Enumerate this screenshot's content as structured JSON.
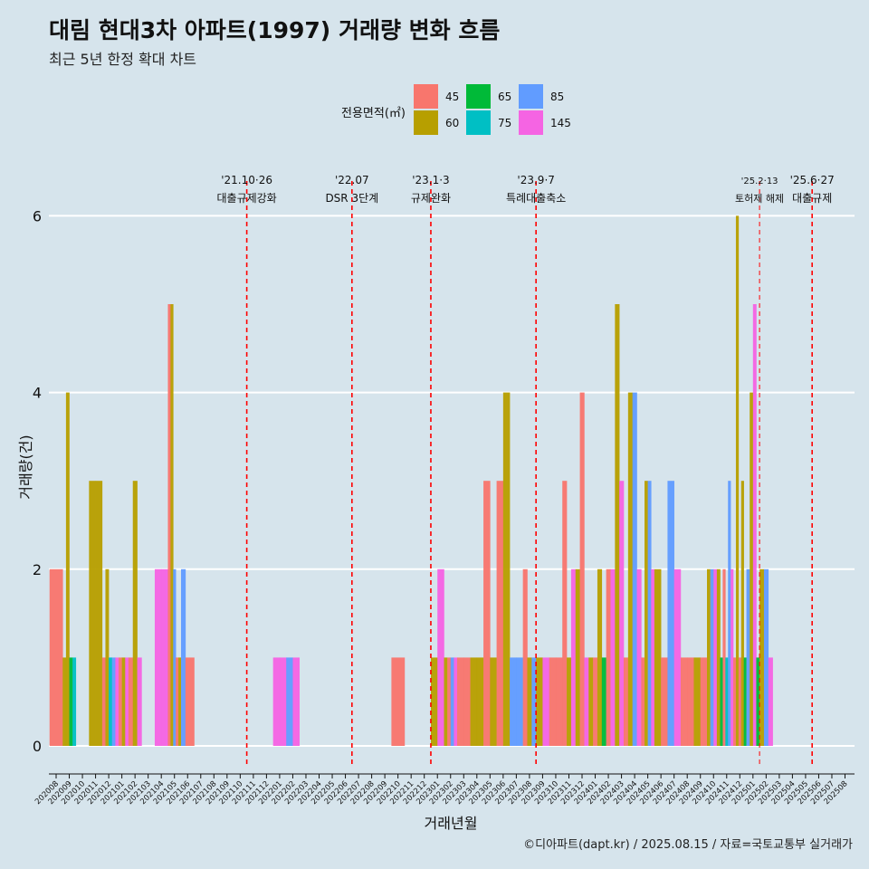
{
  "title": "대림 현대3차 아파트(1997) 거래량 변화 흐름",
  "subtitle": "최근 5년 한정 확대 차트",
  "caption": "©디아파트(dapt.kr) / 2025.08.15 / 자료=국토교통부 실거래가",
  "chart_data": {
    "type": "bar",
    "xlabel": "거래년월",
    "ylabel": "거래량(건)",
    "ylim": [
      0,
      6
    ],
    "y_ticks": [
      0,
      2,
      4,
      6
    ],
    "grid": true,
    "legend_title": "전용면적(㎡)",
    "legend_position": "top",
    "series_colors": {
      "45": "#f8766d",
      "60": "#b79f00",
      "65": "#00ba38",
      "75": "#00bfc4",
      "85": "#619cff",
      "145": "#f564e3"
    },
    "legend_items": [
      "45",
      "60",
      "65",
      "75",
      "85",
      "145"
    ],
    "categories": [
      "202008",
      "202009",
      "202010",
      "202011",
      "202012",
      "202101",
      "202102",
      "202103",
      "202104",
      "202105",
      "202106",
      "202107",
      "202108",
      "202109",
      "202110",
      "202111",
      "202112",
      "202201",
      "202202",
      "202203",
      "202204",
      "202205",
      "202206",
      "202207",
      "202208",
      "202209",
      "202210",
      "202211",
      "202212",
      "202301",
      "202302",
      "202303",
      "202304",
      "202305",
      "202306",
      "202307",
      "202308",
      "202309",
      "202310",
      "202311",
      "202312",
      "202401",
      "202402",
      "202403",
      "202404",
      "202405",
      "202406",
      "202407",
      "202408",
      "202409",
      "202410",
      "202411",
      "202412",
      "202501",
      "202502",
      "202503",
      "202504",
      "202505",
      "202506",
      "202507",
      "202508"
    ],
    "data": [
      [
        {
          "s": "45",
          "v": 2
        }
      ],
      [
        {
          "s": "60",
          "v": 1
        },
        {
          "s": "60",
          "v": 4
        },
        {
          "s": "65",
          "v": 1
        },
        {
          "s": "75",
          "v": 1
        }
      ],
      [],
      [
        {
          "s": "60",
          "v": 3
        },
        {
          "s": "60",
          "v": 3
        }
      ],
      [
        {
          "s": "45",
          "v": 1
        },
        {
          "s": "60",
          "v": 2
        },
        {
          "s": "75",
          "v": 1
        },
        {
          "s": "85",
          "v": 1
        }
      ],
      [
        {
          "s": "145",
          "v": 1
        },
        {
          "s": "45",
          "v": 1
        },
        {
          "s": "60",
          "v": 1
        },
        {
          "s": "145",
          "v": 1
        }
      ],
      [
        {
          "s": "45",
          "v": 1
        },
        {
          "s": "60",
          "v": 3
        },
        {
          "s": "145",
          "v": 1
        }
      ],
      [],
      [
        {
          "s": "145",
          "v": 2
        },
        {
          "s": "145",
          "v": 2
        }
      ],
      [
        {
          "s": "45",
          "v": 5
        },
        {
          "s": "60",
          "v": 5
        },
        {
          "s": "85",
          "v": 2
        },
        {
          "s": "45",
          "v": 1
        },
        {
          "s": "60",
          "v": 1
        }
      ],
      [
        {
          "s": "85",
          "v": 2
        },
        {
          "s": "45",
          "v": 1
        },
        {
          "s": "45",
          "v": 1
        }
      ],
      [],
      [],
      [],
      [],
      [],
      [],
      [
        {
          "s": "145",
          "v": 1
        },
        {
          "s": "145",
          "v": 1
        }
      ],
      [
        {
          "s": "85",
          "v": 1
        },
        {
          "s": "145",
          "v": 1
        }
      ],
      [],
      [],
      [],
      [],
      [],
      [],
      [],
      [
        {
          "s": "45",
          "v": 1
        }
      ],
      [],
      [],
      [
        {
          "s": "60",
          "v": 1
        },
        {
          "s": "145",
          "v": 2
        }
      ],
      [
        {
          "s": "60",
          "v": 1
        },
        {
          "s": "45",
          "v": 1
        },
        {
          "s": "85",
          "v": 1
        },
        {
          "s": "145",
          "v": 1
        }
      ],
      [
        {
          "s": "45",
          "v": 1
        },
        {
          "s": "45",
          "v": 1
        }
      ],
      [
        {
          "s": "60",
          "v": 1
        },
        {
          "s": "60",
          "v": 1
        }
      ],
      [
        {
          "s": "45",
          "v": 3
        },
        {
          "s": "60",
          "v": 1
        }
      ],
      [
        {
          "s": "45",
          "v": 3
        },
        {
          "s": "60",
          "v": 4
        }
      ],
      [
        {
          "s": "85",
          "v": 1
        },
        {
          "s": "85",
          "v": 1
        }
      ],
      [
        {
          "s": "45",
          "v": 2
        },
        {
          "s": "60",
          "v": 1
        },
        {
          "s": "85",
          "v": 1
        }
      ],
      [
        {
          "s": "60",
          "v": 1
        },
        {
          "s": "145",
          "v": 1
        }
      ],
      [
        {
          "s": "45",
          "v": 1
        },
        {
          "s": "45",
          "v": 1
        }
      ],
      [
        {
          "s": "45",
          "v": 3
        },
        {
          "s": "60",
          "v": 1
        },
        {
          "s": "145",
          "v": 2
        }
      ],
      [
        {
          "s": "60",
          "v": 2
        },
        {
          "s": "45",
          "v": 4
        },
        {
          "s": "145",
          "v": 1
        }
      ],
      [
        {
          "s": "60",
          "v": 1
        },
        {
          "s": "45",
          "v": 1
        },
        {
          "s": "60",
          "v": 2
        }
      ],
      [
        {
          "s": "65",
          "v": 1
        },
        {
          "s": "45",
          "v": 2
        },
        {
          "s": "145",
          "v": 2
        }
      ],
      [
        {
          "s": "60",
          "v": 5
        },
        {
          "s": "145",
          "v": 3
        },
        {
          "s": "45",
          "v": 1
        }
      ],
      [
        {
          "s": "60",
          "v": 4
        },
        {
          "s": "85",
          "v": 4
        },
        {
          "s": "145",
          "v": 2
        }
      ],
      [
        {
          "s": "45",
          "v": 1
        },
        {
          "s": "60",
          "v": 3
        },
        {
          "s": "85",
          "v": 3
        },
        {
          "s": "145",
          "v": 2
        }
      ],
      [
        {
          "s": "60",
          "v": 2
        },
        {
          "s": "45",
          "v": 1
        }
      ],
      [
        {
          "s": "85",
          "v": 3
        },
        {
          "s": "145",
          "v": 2
        }
      ],
      [
        {
          "s": "45",
          "v": 1
        },
        {
          "s": "45",
          "v": 1
        }
      ],
      [
        {
          "s": "60",
          "v": 1
        },
        {
          "s": "45",
          "v": 1
        }
      ],
      [
        {
          "s": "60",
          "v": 2
        },
        {
          "s": "85",
          "v": 2
        },
        {
          "s": "145",
          "v": 2
        },
        {
          "s": "60",
          "v": 2
        }
      ],
      [
        {
          "s": "65",
          "v": 1
        },
        {
          "s": "45",
          "v": 2
        },
        {
          "s": "75",
          "v": 1
        },
        {
          "s": "85",
          "v": 3
        },
        {
          "s": "145",
          "v": 2
        }
      ],
      [
        {
          "s": "45",
          "v": 1
        },
        {
          "s": "60",
          "v": 6
        },
        {
          "s": "45",
          "v": 1
        },
        {
          "s": "60",
          "v": 3
        },
        {
          "s": "65",
          "v": 1
        }
      ],
      [
        {
          "s": "85",
          "v": 2
        },
        {
          "s": "60",
          "v": 4
        },
        {
          "s": "145",
          "v": 5
        },
        {
          "s": "65",
          "v": 1
        }
      ],
      [
        {
          "s": "60",
          "v": 2
        },
        {
          "s": "85",
          "v": 2
        },
        {
          "s": "145",
          "v": 1
        }
      ],
      [],
      [],
      [],
      [],
      [],
      []
    ],
    "events": [
      {
        "after": "202110",
        "date": "'21.10·26",
        "label": "대출규제강화"
      },
      {
        "after": "202206",
        "date": "'22.07",
        "label": "DSR 3단계"
      },
      {
        "after": "202212",
        "date": "'23.1·3",
        "label": "규제완화"
      },
      {
        "after": "202308",
        "date": "'23.9·7",
        "label": "특례대출축소"
      },
      {
        "after": "202501",
        "date": "'25.2·13",
        "label": "토허제 해제",
        "thin": true
      },
      {
        "after": "202505",
        "date": "'25.6·27",
        "label": "대출규제"
      }
    ]
  }
}
